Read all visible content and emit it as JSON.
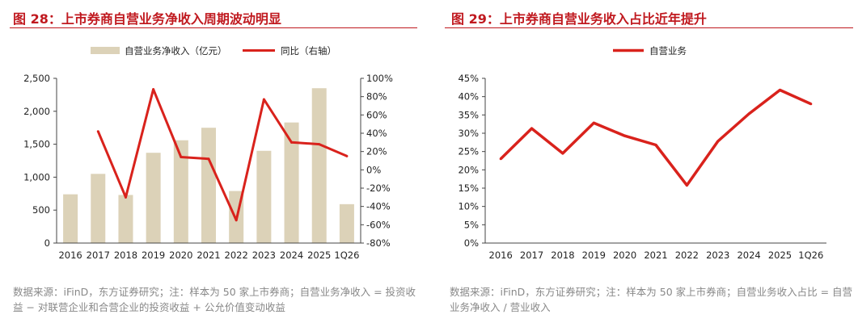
{
  "left": {
    "figure_title": "图 28：上市券商自营业务净收入周期波动明显",
    "source": "数据来源：iFinD，东方证券研究；注：样本为 50 家上市券商；自营业务净收入 = 投资收益 − 对联营企业和合营企业的投资收益 + 公允价值变动收益",
    "chart_data": {
      "type": "bar+line",
      "categories": [
        "2016",
        "2017",
        "2018",
        "2019",
        "2020",
        "2021",
        "2022",
        "2023",
        "2024",
        "2025",
        "1Q26"
      ],
      "series": [
        {
          "name": "自营业务净收入（亿元）",
          "type": "bar",
          "axis": "left",
          "color": "#dcd2b8",
          "values": [
            740,
            1050,
            730,
            1370,
            1560,
            1750,
            790,
            1400,
            1830,
            2350,
            590
          ]
        },
        {
          "name": "同比（右轴）",
          "type": "line",
          "axis": "right",
          "color": "#d9221c",
          "values": [
            null,
            42,
            -30,
            88,
            14,
            12,
            -55,
            77,
            30,
            28,
            15
          ]
        }
      ],
      "y_left": {
        "ylim": [
          0,
          2500
        ],
        "ticks": [
          0,
          500,
          1000,
          1500,
          2000,
          2500
        ],
        "tick_labels": [
          "0",
          "500",
          "1,000",
          "1,500",
          "2,000",
          "2,500"
        ]
      },
      "y_right": {
        "ylim": [
          -80,
          100
        ],
        "ticks": [
          -80,
          -60,
          -40,
          -20,
          0,
          20,
          40,
          60,
          80,
          100
        ],
        "tick_labels": [
          "-80%",
          "-60%",
          "-40%",
          "-20%",
          "0%",
          "20%",
          "40%",
          "60%",
          "80%",
          "100%"
        ]
      },
      "grid": false,
      "legend": "top"
    }
  },
  "right": {
    "figure_title": "图 29：上市券商自营业务收入占比近年提升",
    "source": "数据来源：iFinD，东方证券研究；注：样本为 50 家上市券商；自营业务收入占比 = 自营业务净收入 / 营业收入",
    "chart_data": {
      "type": "line",
      "categories": [
        "2016",
        "2017",
        "2018",
        "2019",
        "2020",
        "2021",
        "2022",
        "2023",
        "2024",
        "2025",
        "1Q26"
      ],
      "series": [
        {
          "name": "自营业务",
          "color": "#d9221c",
          "values": [
            23.0,
            31.3,
            24.5,
            32.8,
            29.3,
            26.8,
            15.8,
            27.8,
            35.3,
            41.8,
            38.0
          ]
        }
      ],
      "ylim": [
        0,
        45
      ],
      "ticks": [
        0,
        5,
        10,
        15,
        20,
        25,
        30,
        35,
        40,
        45
      ],
      "tick_labels": [
        "0%",
        "5%",
        "10%",
        "15%",
        "20%",
        "25%",
        "30%",
        "35%",
        "40%",
        "45%"
      ],
      "grid": false,
      "legend": "top"
    }
  }
}
